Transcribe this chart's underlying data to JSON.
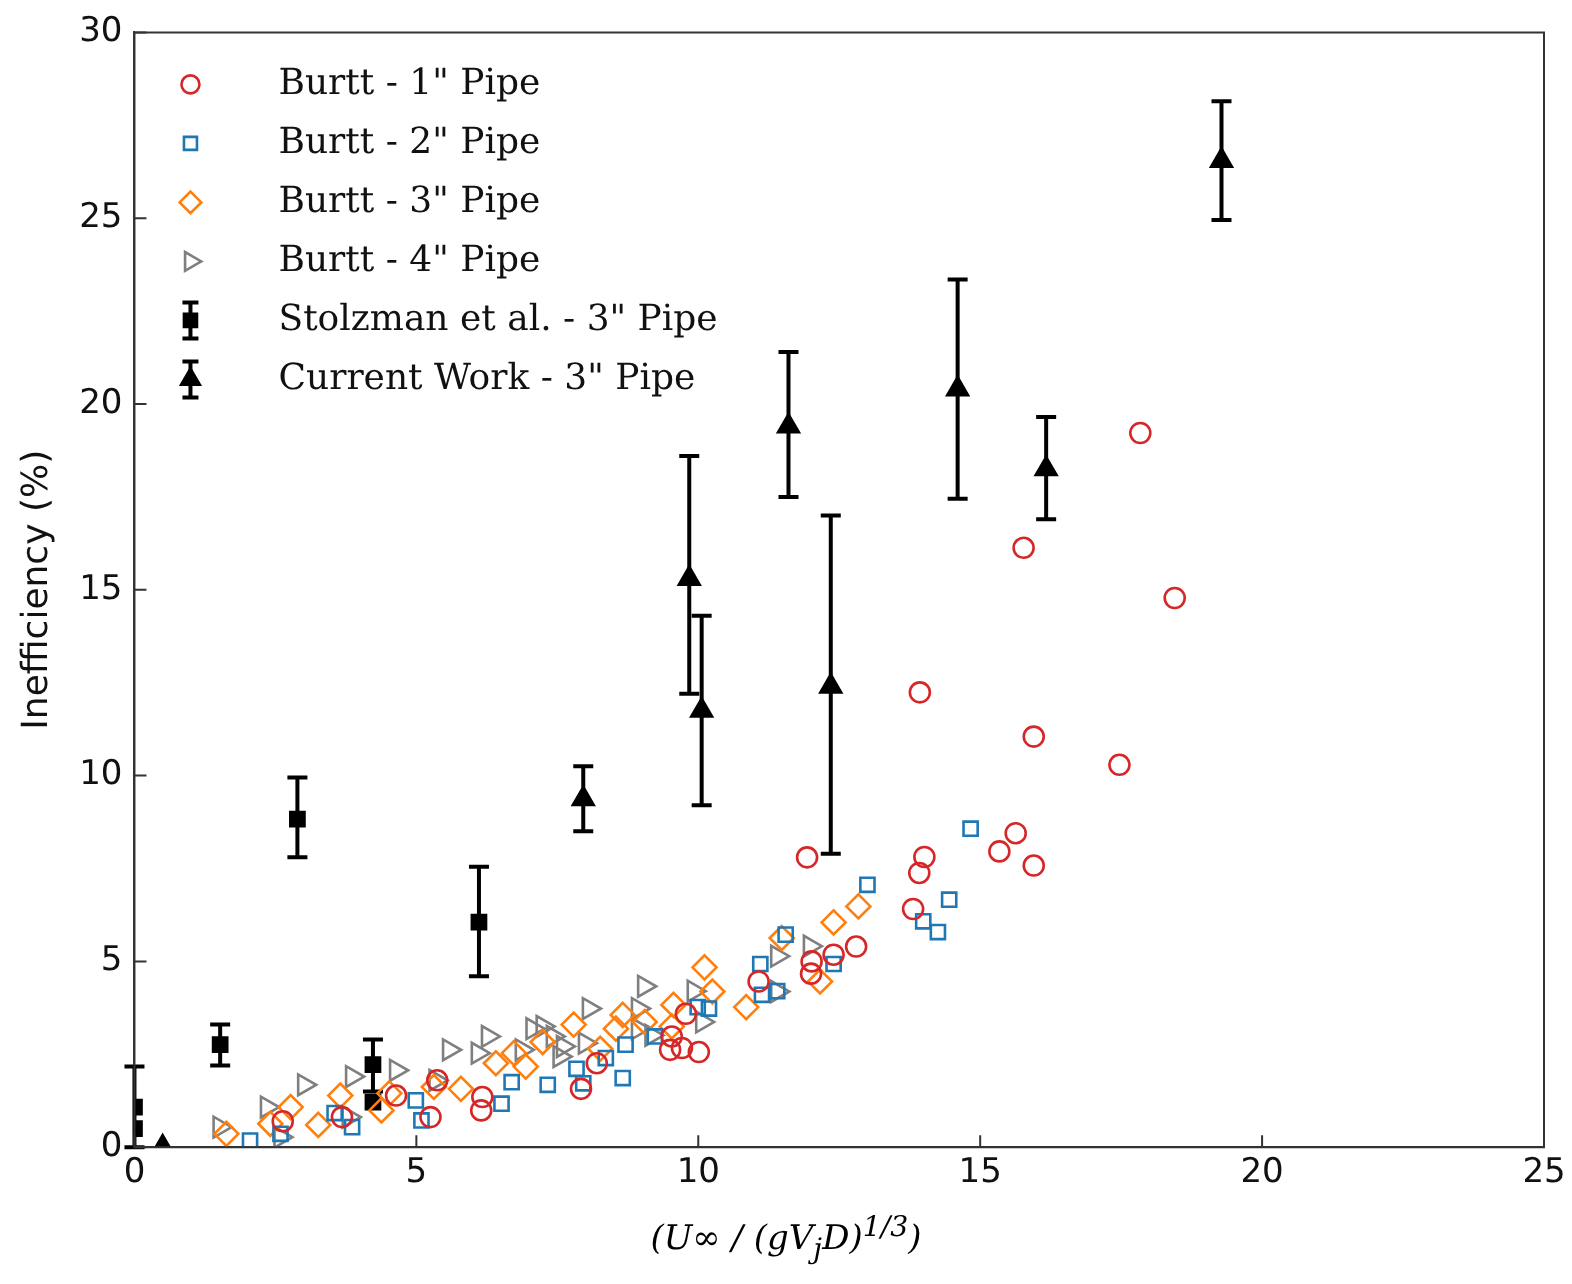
{
  "chart_data": {
    "type": "scatter",
    "xlabel": "(U∞ / (gV$_{j}$D)$^{1/3}$)",
    "ylabel": "Inefficiency (%)",
    "xlim": [
      0,
      25
    ],
    "xticks": [
      0,
      5,
      10,
      15,
      20,
      25
    ],
    "ylim": [
      0,
      30
    ],
    "yticks": [
      0,
      5,
      10,
      15,
      20,
      25,
      30
    ],
    "grid": false,
    "legend": "top left",
    "series": [
      {
        "name": "Burtt - 1\" Pipe",
        "color": "#d62728",
        "marker": "circle",
        "x": [
          17.84,
          15.77,
          18.45,
          15.95,
          17.47,
          13.93,
          15.63,
          15.34,
          15.95,
          11.93,
          14.01,
          13.92,
          13.81,
          12.8,
          12.4,
          12.01,
          12.0,
          11.07,
          9.78,
          9.53,
          9.5,
          9.71,
          10.01,
          8.2,
          7.92,
          5.25,
          6.15,
          4.64,
          2.63,
          3.68,
          5.37,
          6.17
        ],
        "values": [
          19.22,
          16.13,
          14.78,
          11.05,
          10.29,
          12.24,
          8.45,
          7.96,
          7.58,
          7.8,
          7.81,
          7.38,
          6.41,
          5.4,
          5.18,
          5.0,
          4.67,
          4.46,
          3.59,
          2.98,
          2.62,
          2.67,
          2.56,
          2.26,
          1.57,
          0.81,
          0.99,
          1.39,
          0.7,
          0.81,
          1.8,
          1.35
        ]
      },
      {
        "name": "Burtt - 2\" Pipe",
        "color": "#1f77b4",
        "marker": "square",
        "x": [
          14.83,
          13.0,
          14.45,
          13.99,
          14.25,
          12.4,
          11.55,
          11.1,
          11.13,
          11.4,
          9.99,
          10.19,
          9.23,
          8.71,
          8.36,
          8.66,
          7.84,
          7.96,
          7.33,
          6.69,
          6.51,
          5.09,
          3.86,
          3.55,
          2.59,
          2.05,
          4.99
        ],
        "values": [
          8.57,
          7.06,
          6.66,
          6.08,
          5.79,
          4.93,
          5.72,
          4.93,
          4.1,
          4.2,
          3.77,
          3.73,
          2.98,
          2.76,
          2.4,
          1.86,
          2.11,
          1.72,
          1.68,
          1.75,
          1.17,
          0.72,
          0.54,
          0.92,
          0.36,
          0.18,
          1.26
        ]
      },
      {
        "name": "Burtt - 3\" Pipe",
        "color": "#ff7f0e",
        "marker": "diamond",
        "x": [
          12.84,
          12.4,
          11.48,
          12.16,
          10.85,
          10.11,
          10.25,
          9.56,
          9.53,
          9.05,
          8.66,
          8.54,
          7.79,
          8.26,
          7.24,
          6.94,
          6.73,
          6.41,
          5.79,
          5.31,
          4.52,
          4.38,
          3.65,
          3.26,
          2.77,
          2.41,
          1.63
        ],
        "values": [
          6.48,
          6.05,
          5.63,
          4.46,
          3.77,
          4.84,
          4.19,
          3.83,
          3.25,
          3.37,
          3.56,
          3.19,
          3.3,
          2.65,
          2.83,
          2.17,
          2.53,
          2.26,
          1.57,
          1.62,
          1.45,
          0.99,
          1.39,
          0.6,
          1.08,
          0.63,
          0.36
        ]
      },
      {
        "name": "Burtt - 4\" Pipe",
        "color": "#7f7f7f",
        "marker": "triangle",
        "x": [
          11.98,
          11.4,
          11.4,
          10.07,
          9.92,
          9.04,
          8.93,
          8.06,
          8.93,
          9.17,
          7.99,
          7.06,
          7.24,
          7.42,
          7.6,
          6.87,
          7.54,
          6.27,
          6.09,
          5.58,
          4.64,
          5.34,
          3.86,
          3.01,
          2.35,
          1.51,
          2.59,
          3.8
        ],
        "values": [
          5.41,
          5.14,
          4.19,
          3.37,
          4.2,
          4.33,
          3.73,
          3.73,
          3.19,
          3.01,
          2.8,
          3.19,
          3.25,
          2.98,
          2.71,
          2.62,
          2.44,
          2.98,
          2.53,
          2.62,
          2.07,
          1.8,
          1.9,
          1.68,
          1.08,
          0.54,
          0.27,
          0.81
        ]
      },
      {
        "name": "Stolzman et al. - 3\" Pipe",
        "color": "#000000",
        "marker": "square",
        "x": [
          0,
          0,
          1.52,
          2.89,
          4.23,
          4.23,
          6.11
        ],
        "values": [
          1.08,
          0.5,
          2.76,
          8.83,
          2.22,
          1.21,
          6.06
        ],
        "errors": [
          [
            0,
            2.17
          ],
          null,
          [
            2.2,
            3.3
          ],
          [
            7.8,
            9.95
          ],
          [
            1.5,
            2.9
          ],
          null,
          [
            4.6,
            7.55
          ]
        ]
      },
      {
        "name": "Current Work - 3\" Pipe",
        "color": "#000000",
        "marker": "triangle",
        "x": [
          0.5,
          7.96,
          9.84,
          10.06,
          11.6,
          12.35,
          14.6,
          16.17,
          19.28
        ],
        "values": [
          0,
          9.37,
          15.3,
          11.75,
          19.4,
          12.4,
          20.4,
          18.25,
          26.55
        ],
        "errors": [
          null,
          [
            8.5,
            10.25
          ],
          [
            12.2,
            18.6
          ],
          [
            9.2,
            14.3
          ],
          [
            17.5,
            21.4
          ],
          [
            7.9,
            17.0
          ],
          [
            17.45,
            23.35
          ],
          [
            16.9,
            19.65
          ],
          [
            24.95,
            28.15
          ]
        ]
      }
    ]
  }
}
